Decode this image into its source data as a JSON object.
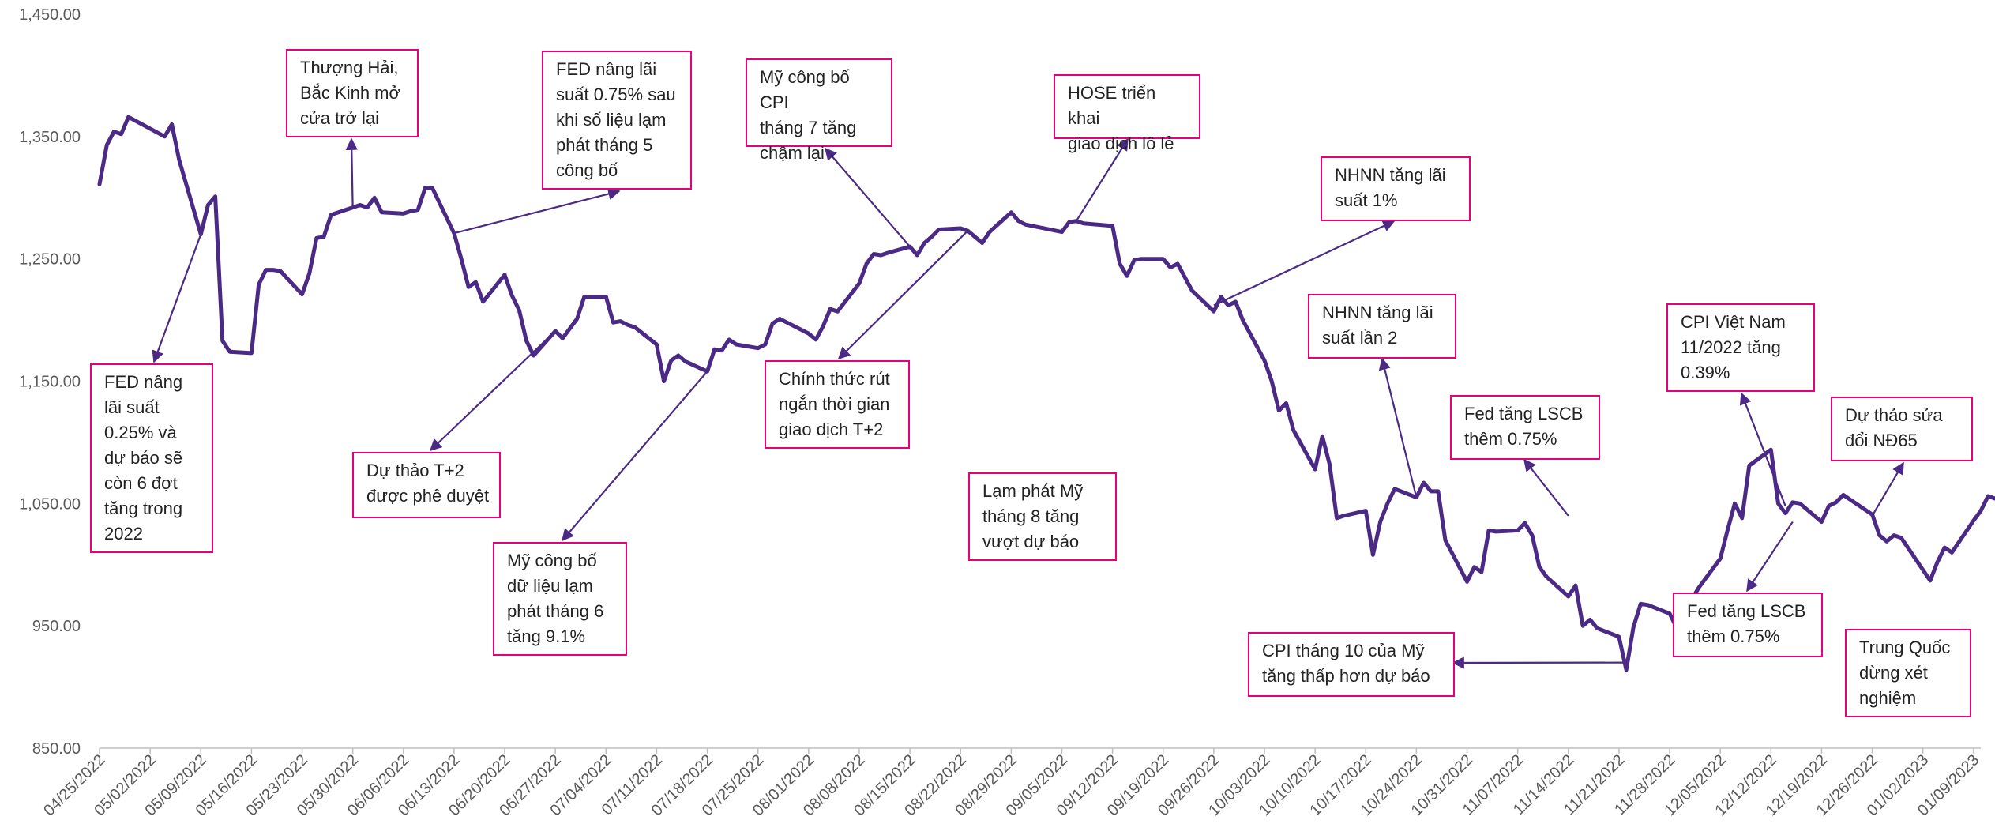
{
  "chart_data": {
    "type": "line",
    "title": "",
    "xlabel": "",
    "ylabel": "",
    "ylim": [
      850,
      1450
    ],
    "yticks": [
      "850.00",
      "950.00",
      "1,050.00",
      "1,150.00",
      "1,250.00",
      "1,350.00",
      "1,450.00"
    ],
    "ytick_values": [
      850,
      950,
      1050,
      1150,
      1250,
      1350,
      1450
    ],
    "x_start": "04/25/2022",
    "x_end": "01/10/2023",
    "xticks": [
      "04/25/2022",
      "05/02/2022",
      "05/09/2022",
      "05/16/2022",
      "05/23/2022",
      "05/30/2022",
      "06/06/2022",
      "06/13/2022",
      "06/20/2022",
      "06/27/2022",
      "07/04/2022",
      "07/11/2022",
      "07/18/2022",
      "07/25/2022",
      "08/01/2022",
      "08/08/2022",
      "08/15/2022",
      "08/22/2022",
      "08/29/2022",
      "09/05/2022",
      "09/12/2022",
      "09/19/2022",
      "09/26/2022",
      "10/03/2022",
      "10/10/2022",
      "10/17/2022",
      "10/24/2022",
      "10/31/2022",
      "11/07/2022",
      "11/14/2022",
      "11/21/2022",
      "11/28/2022",
      "12/05/2022",
      "12/12/2022",
      "12/19/2022",
      "12/26/2022",
      "01/02/2023",
      "01/09/2023"
    ],
    "grid": false,
    "line_color": "#4b2a85",
    "series": [
      {
        "name": "",
        "points": [
          [
            "04/25/2022",
            1311
          ],
          [
            "04/26/2022",
            1343
          ],
          [
            "04/27/2022",
            1354
          ],
          [
            "04/28/2022",
            1352
          ],
          [
            "04/29/2022",
            1366
          ],
          [
            "05/04/2022",
            1350
          ],
          [
            "05/05/2022",
            1360
          ],
          [
            "05/06/2022",
            1331
          ],
          [
            "05/09/2022",
            1270
          ],
          [
            "05/10/2022",
            1294
          ],
          [
            "05/11/2022",
            1301
          ],
          [
            "05/12/2022",
            1183
          ],
          [
            "05/13/2022",
            1174
          ],
          [
            "05/16/2022",
            1173
          ],
          [
            "05/17/2022",
            1229
          ],
          [
            "05/18/2022",
            1241
          ],
          [
            "05/19/2022",
            1241
          ],
          [
            "05/20/2022",
            1240
          ],
          [
            "05/23/2022",
            1221
          ],
          [
            "05/24/2022",
            1238
          ],
          [
            "05/25/2022",
            1267
          ],
          [
            "05/26/2022",
            1268
          ],
          [
            "05/27/2022",
            1286
          ],
          [
            "05/30/2022",
            1292
          ],
          [
            "05/31/2022",
            1294
          ],
          [
            "06/01/2022",
            1292
          ],
          [
            "06/02/2022",
            1300
          ],
          [
            "06/03/2022",
            1288
          ],
          [
            "06/06/2022",
            1287
          ],
          [
            "06/07/2022",
            1289
          ],
          [
            "06/08/2022",
            1290
          ],
          [
            "06/09/2022",
            1308
          ],
          [
            "06/10/2022",
            1308
          ],
          [
            "06/13/2022",
            1271
          ],
          [
            "06/14/2022",
            1250
          ],
          [
            "06/15/2022",
            1227
          ],
          [
            "06/16/2022",
            1231
          ],
          [
            "06/17/2022",
            1215
          ],
          [
            "06/20/2022",
            1237
          ],
          [
            "06/21/2022",
            1220
          ],
          [
            "06/22/2022",
            1208
          ],
          [
            "06/23/2022",
            1183
          ],
          [
            "06/24/2022",
            1171
          ],
          [
            "06/27/2022",
            1191
          ],
          [
            "06/28/2022",
            1185
          ],
          [
            "06/29/2022",
            1193
          ],
          [
            "06/30/2022",
            1201
          ],
          [
            "07/01/2022",
            1219
          ],
          [
            "07/04/2022",
            1219
          ],
          [
            "07/05/2022",
            1198
          ],
          [
            "07/06/2022",
            1199
          ],
          [
            "07/07/2022",
            1196
          ],
          [
            "07/08/2022",
            1194
          ],
          [
            "07/11/2022",
            1180
          ],
          [
            "07/12/2022",
            1150
          ],
          [
            "07/13/2022",
            1167
          ],
          [
            "07/14/2022",
            1171
          ],
          [
            "07/15/2022",
            1166
          ],
          [
            "07/18/2022",
            1158
          ],
          [
            "07/19/2022",
            1176
          ],
          [
            "07/20/2022",
            1175
          ],
          [
            "07/21/2022",
            1184
          ],
          [
            "07/22/2022",
            1180
          ],
          [
            "07/25/2022",
            1177
          ],
          [
            "07/26/2022",
            1180
          ],
          [
            "07/27/2022",
            1197
          ],
          [
            "07/28/2022",
            1201
          ],
          [
            "07/29/2022",
            1198
          ],
          [
            "08/01/2022",
            1189
          ],
          [
            "08/02/2022",
            1184
          ],
          [
            "08/03/2022",
            1195
          ],
          [
            "08/04/2022",
            1209
          ],
          [
            "08/05/2022",
            1207
          ],
          [
            "08/08/2022",
            1230
          ],
          [
            "08/09/2022",
            1246
          ],
          [
            "08/10/2022",
            1254
          ],
          [
            "08/11/2022",
            1253
          ],
          [
            "08/12/2022",
            1255
          ],
          [
            "08/15/2022",
            1260
          ],
          [
            "08/16/2022",
            1253
          ],
          [
            "08/17/2022",
            1263
          ],
          [
            "08/18/2022",
            1268
          ],
          [
            "08/19/2022",
            1274
          ],
          [
            "08/22/2022",
            1275
          ],
          [
            "08/23/2022",
            1273
          ],
          [
            "08/24/2022",
            1268
          ],
          [
            "08/25/2022",
            1263
          ],
          [
            "08/26/2022",
            1272
          ],
          [
            "08/29/2022",
            1288
          ],
          [
            "08/30/2022",
            1281
          ],
          [
            "08/31/2022",
            1278
          ],
          [
            "09/05/2022",
            1272
          ],
          [
            "09/06/2022",
            1280
          ],
          [
            "09/07/2022",
            1281
          ],
          [
            "09/08/2022",
            1279
          ],
          [
            "09/12/2022",
            1277
          ],
          [
            "09/13/2022",
            1246
          ],
          [
            "09/14/2022",
            1236
          ],
          [
            "09/15/2022",
            1249
          ],
          [
            "09/16/2022",
            1250
          ],
          [
            "09/19/2022",
            1250
          ],
          [
            "09/20/2022",
            1243
          ],
          [
            "09/21/2022",
            1246
          ],
          [
            "09/22/2022",
            1235
          ],
          [
            "09/23/2022",
            1224
          ],
          [
            "09/26/2022",
            1207
          ],
          [
            "09/27/2022",
            1219
          ],
          [
            "09/28/2022",
            1212
          ],
          [
            "09/29/2022",
            1215
          ],
          [
            "09/30/2022",
            1200
          ],
          [
            "10/03/2022",
            1167
          ],
          [
            "10/04/2022",
            1150
          ],
          [
            "10/05/2022",
            1126
          ],
          [
            "10/06/2022",
            1132
          ],
          [
            "10/07/2022",
            1110
          ],
          [
            "10/10/2022",
            1078
          ],
          [
            "10/11/2022",
            1105
          ],
          [
            "10/12/2022",
            1082
          ],
          [
            "10/13/2022",
            1038
          ],
          [
            "10/14/2022",
            1040
          ],
          [
            "10/17/2022",
            1044
          ],
          [
            "10/18/2022",
            1008
          ],
          [
            "10/19/2022",
            1035
          ],
          [
            "10/20/2022",
            1050
          ],
          [
            "10/21/2022",
            1062
          ],
          [
            "10/24/2022",
            1055
          ],
          [
            "10/25/2022",
            1067
          ],
          [
            "10/26/2022",
            1060
          ],
          [
            "10/27/2022",
            1060
          ],
          [
            "10/28/2022",
            1020
          ],
          [
            "10/31/2022",
            986
          ],
          [
            "11/01/2022",
            998
          ],
          [
            "11/02/2022",
            994
          ],
          [
            "11/03/2022",
            1028
          ],
          [
            "11/04/2022",
            1027
          ],
          [
            "11/07/2022",
            1028
          ],
          [
            "11/08/2022",
            1034
          ],
          [
            "11/09/2022",
            1024
          ],
          [
            "11/10/2022",
            998
          ],
          [
            "11/11/2022",
            990
          ],
          [
            "11/14/2022",
            974
          ],
          [
            "11/15/2022",
            983
          ],
          [
            "11/16/2022",
            950
          ],
          [
            "11/17/2022",
            955
          ],
          [
            "11/18/2022",
            948
          ],
          [
            "11/21/2022",
            941
          ],
          [
            "11/22/2022",
            914
          ],
          [
            "11/23/2022",
            949
          ],
          [
            "11/24/2022",
            968
          ],
          [
            "11/25/2022",
            967
          ],
          [
            "11/28/2022",
            960
          ],
          [
            "11/29/2022",
            948
          ],
          [
            "11/30/2022",
            951
          ],
          [
            "12/01/2022",
            971
          ],
          [
            "12/02/2022",
            981
          ],
          [
            "12/05/2022",
            1005
          ],
          [
            "12/06/2022",
            1028
          ],
          [
            "12/07/2022",
            1050
          ],
          [
            "12/08/2022",
            1038
          ],
          [
            "12/09/2022",
            1081
          ],
          [
            "12/12/2022",
            1094
          ],
          [
            "12/13/2022",
            1050
          ],
          [
            "12/14/2022",
            1042
          ],
          [
            "12/15/2022",
            1051
          ],
          [
            "12/16/2022",
            1050
          ],
          [
            "12/19/2022",
            1035
          ],
          [
            "12/20/2022",
            1048
          ],
          [
            "12/21/2022",
            1051
          ],
          [
            "12/22/2022",
            1057
          ],
          [
            "12/23/2022",
            1053
          ],
          [
            "12/26/2022",
            1041
          ],
          [
            "12/27/2022",
            1024
          ],
          [
            "12/28/2022",
            1019
          ],
          [
            "12/29/2022",
            1024
          ],
          [
            "12/30/2022",
            1022
          ],
          [
            "01/03/2023",
            987
          ],
          [
            "01/04/2023",
            1002
          ],
          [
            "01/05/2023",
            1014
          ],
          [
            "01/06/2023",
            1010
          ],
          [
            "01/09/2023",
            1036
          ],
          [
            "01/10/2023",
            1044
          ],
          [
            "01/11/2023",
            1056
          ],
          [
            "01/12/2023",
            1054
          ]
        ]
      }
    ],
    "annotations": [
      {
        "text": "FED nâng\nlãi suất\n0.25% và\ndự báo sẽ\ncòn 6 đợt\ntăng trong\n2022",
        "target_date": "05/09/2022",
        "target_value": 1270
      },
      {
        "text": "Thượng Hải,\nBắc Kinh mở\ncửa trở lại",
        "target_date": "05/30/2022",
        "target_value": 1292
      },
      {
        "text": "FED nâng lãi\nsuất 0.75% sau\nkhi số liệu lạm\nphát tháng 5\ncông bố",
        "target_date": "06/13/2022",
        "target_value": 1271
      },
      {
        "text": "Dự thảo T+2\nđược phê duyệt",
        "target_date": "06/27/2022",
        "target_value": 1191
      },
      {
        "text": "Mỹ công bố\ndữ liệu lạm\nphát tháng 6\ntăng 9.1%",
        "target_date": "07/18/2022",
        "target_value": 1158
      },
      {
        "text": "Mỹ công bố CPI\ntháng 7 tăng\nchậm lại",
        "target_date": "08/15/2022",
        "target_value": 1260
      },
      {
        "text": "Chính thức rút\nngắn thời gian\ngiao dịch T+2",
        "target_date": "08/23/2022",
        "target_value": 1273
      },
      {
        "text": "HOSE triển khai\ngiao dịch lô lẻ",
        "target_date": "09/07/2022",
        "target_value": 1281
      },
      {
        "text": "Lạm phát Mỹ\ntháng 8 tăng\nvượt dự báo",
        "target_date": "",
        "target_value": null
      },
      {
        "text": "NHNN tăng lãi\nsuất 1%",
        "target_date": "09/26/2022",
        "target_value": 1212
      },
      {
        "text": "NHNN tăng lãi\nsuất lần 2",
        "target_date": "10/24/2022",
        "target_value": 1055
      },
      {
        "text": "Fed tăng LSCB\nthêm 0.75%",
        "target_date": "11/14/2022",
        "target_value": 1040
      },
      {
        "text": "CPI tháng 10 của Mỹ\ntăng thấp hơn dự báo",
        "target_date": "11/22/2022",
        "target_value": 920
      },
      {
        "text": "CPI Việt Nam\n11/2022 tăng\n0.39%",
        "target_date": "12/14/2022",
        "target_value": 1048
      },
      {
        "text": "Fed tăng LSCB\nthêm 0.75%",
        "target_date": "12/15/2022",
        "target_value": 1035
      },
      {
        "text": "Dự thảo sửa\nđổi NĐ65",
        "target_date": "12/26/2022",
        "target_value": 1040
      },
      {
        "text": "Trung Quốc\ndừng xét\nnghiệm",
        "target_date": "",
        "target_value": null
      }
    ]
  }
}
